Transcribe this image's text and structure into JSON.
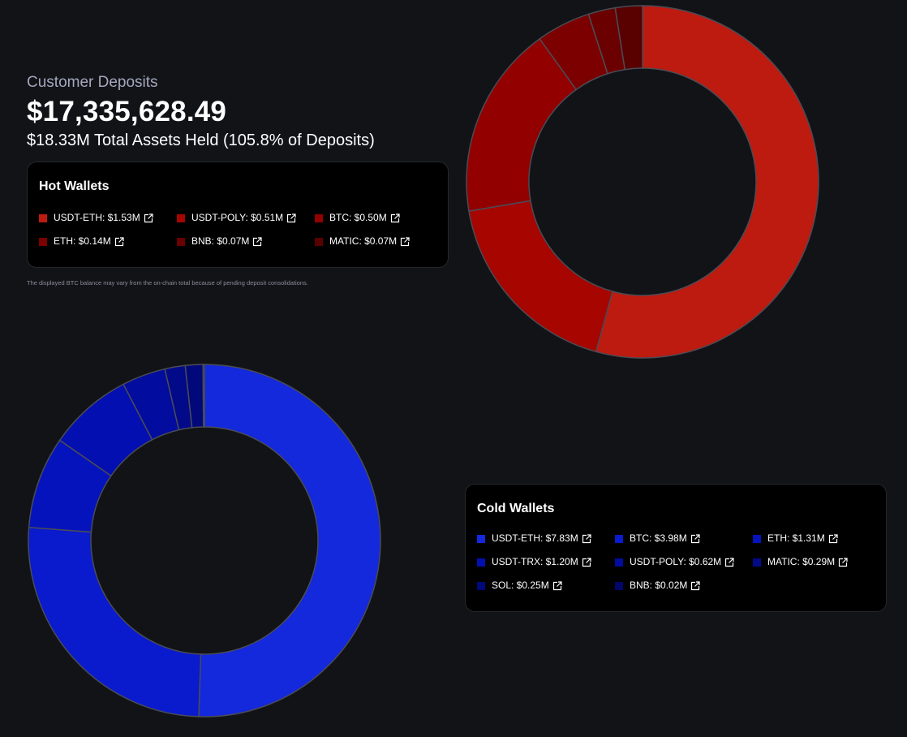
{
  "header": {
    "kicker": "Customer Deposits",
    "amount": "$17,335,628.49",
    "sub": "$18.33M Total Assets Held (105.8% of Deposits)"
  },
  "hot": {
    "title": "Hot Wallets",
    "items": [
      {
        "label": "USDT-ETH: $1.53M",
        "color": "#bd1a10"
      },
      {
        "label": "USDT-POLY: $0.51M",
        "color": "#a60500"
      },
      {
        "label": "BTC: $0.50M",
        "color": "#930000"
      },
      {
        "label": "ETH: $0.14M",
        "color": "#7c0000"
      },
      {
        "label": "BNB: $0.07M",
        "color": "#6a0000"
      },
      {
        "label": "MATIC: $0.07M",
        "color": "#590000"
      }
    ]
  },
  "cold": {
    "title": "Cold Wallets",
    "items": [
      {
        "label": "USDT-ETH: $7.83M",
        "color": "#1428dc"
      },
      {
        "label": "BTC: $3.98M",
        "color": "#0a1acd"
      },
      {
        "label": "ETH: $1.31M",
        "color": "#0513bd"
      },
      {
        "label": "USDT-TRX: $1.20M",
        "color": "#030fb0"
      },
      {
        "label": "USDT-POLY: $0.62M",
        "color": "#020c9e"
      },
      {
        "label": "MATIC: $0.29M",
        "color": "#020a8a"
      },
      {
        "label": "SOL: $0.25M",
        "color": "#01087a"
      },
      {
        "label": "BNB: $0.02M",
        "color": "#01066a"
      }
    ]
  },
  "footnote": "The displayed BTC balance may vary from the on-chain total because of pending deposit consolidations.",
  "chart_data": [
    {
      "type": "pie",
      "categories": [
        "USDT-ETH",
        "USDT-POLY",
        "BTC",
        "ETH",
        "BNB",
        "MATIC"
      ],
      "values": [
        1.53,
        0.51,
        0.5,
        0.14,
        0.07,
        0.07
      ],
      "colors": [
        "#bd1a10",
        "#a60500",
        "#930000",
        "#7c0000",
        "#6a0000",
        "#590000"
      ],
      "title": "Hot Wallets"
    },
    {
      "type": "pie",
      "categories": [
        "USDT-ETH",
        "BTC",
        "ETH",
        "USDT-TRX",
        "USDT-POLY",
        "MATIC",
        "SOL",
        "BNB"
      ],
      "values": [
        7.83,
        3.98,
        1.31,
        1.2,
        0.62,
        0.29,
        0.25,
        0.02
      ],
      "colors": [
        "#1428dc",
        "#0a1acd",
        "#0513bd",
        "#030fb0",
        "#020c9e",
        "#020a8a",
        "#01087a",
        "#01066a"
      ],
      "title": "Cold Wallets"
    }
  ]
}
